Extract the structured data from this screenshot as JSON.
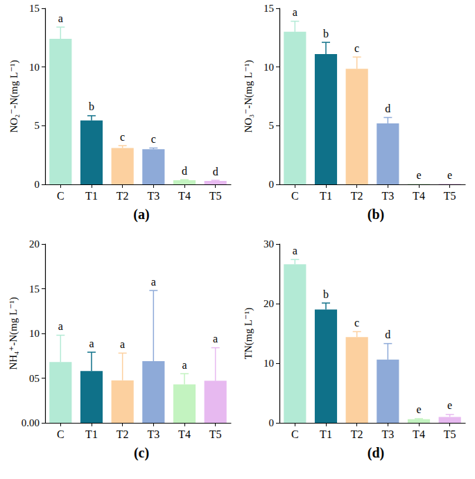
{
  "chart_data": [
    {
      "type": "bar",
      "title": "(a)",
      "ylabel": "NO₂⁻-N(mg L⁻¹)",
      "categories": [
        "C",
        "T1",
        "T2",
        "T3",
        "T4",
        "T5"
      ],
      "values": [
        12.4,
        5.45,
        3.1,
        3.0,
        0.35,
        0.3
      ],
      "errors": [
        1.0,
        0.4,
        0.2,
        0.1,
        0.05,
        0.05
      ],
      "letters": [
        "a",
        "b",
        "c",
        "c",
        "d",
        "d"
      ],
      "colors": [
        "#b3ead5",
        "#0f7189",
        "#fcd09f",
        "#8eaad8",
        "#c3f3c0",
        "#e7b9f0"
      ],
      "ylim": [
        0,
        15
      ],
      "yticks": [
        0,
        5,
        10,
        15
      ]
    },
    {
      "type": "bar",
      "title": "(b)",
      "ylabel": "NO₃⁻-N(mg L⁻¹)",
      "categories": [
        "C",
        "T1",
        "T2",
        "T3",
        "T4",
        "T5"
      ],
      "values": [
        13.0,
        11.1,
        9.85,
        5.2,
        0.05,
        0.05
      ],
      "errors": [
        0.9,
        1.0,
        1.0,
        0.5,
        0.0,
        0.0
      ],
      "letters": [
        "a",
        "b",
        "c",
        "d",
        "e",
        "e"
      ],
      "colors": [
        "#b3ead5",
        "#0f7189",
        "#fcd09f",
        "#8eaad8",
        "#c3f3c0",
        "#e7b9f0"
      ],
      "ylim": [
        0,
        15
      ],
      "yticks": [
        0,
        5,
        10,
        15
      ]
    },
    {
      "type": "bar",
      "title": "(c)",
      "ylabel": "NH₄⁺-N(mg L⁻¹)",
      "categories": [
        "C",
        "T1",
        "T2",
        "T3",
        "T4",
        "T5"
      ],
      "values": [
        6.8,
        5.8,
        4.75,
        6.9,
        4.3,
        4.7
      ],
      "errors": [
        3.0,
        2.1,
        3.05,
        7.9,
        1.2,
        3.7
      ],
      "letters": [
        "a",
        "a",
        "a",
        "a",
        "a",
        "a"
      ],
      "colors": [
        "#b3ead5",
        "#0f7189",
        "#fcd09f",
        "#8eaad8",
        "#c3f3c0",
        "#e7b9f0"
      ],
      "ylim": [
        0,
        20
      ],
      "yticks": [
        {
          "value": 0,
          "label": "0.00"
        },
        {
          "value": 5,
          "label": "05"
        },
        10,
        15,
        20
      ]
    },
    {
      "type": "bar",
      "title": "(d)",
      "ylabel": "TN(mg L⁻¹)",
      "categories": [
        "C",
        "T1",
        "T2",
        "T3",
        "T4",
        "T5"
      ],
      "values": [
        26.6,
        19.0,
        14.4,
        10.6,
        0.6,
        1.0
      ],
      "errors": [
        0.8,
        1.1,
        0.9,
        2.7,
        0.1,
        0.4
      ],
      "letters": [
        "a",
        "b",
        "c",
        "d",
        "e",
        "e"
      ],
      "colors": [
        "#b3ead5",
        "#0f7189",
        "#fcd09f",
        "#8eaad8",
        "#c3f3c0",
        "#e7b9f0"
      ],
      "ylim": [
        0,
        30
      ],
      "yticks": [
        0,
        10,
        20,
        30
      ]
    }
  ]
}
